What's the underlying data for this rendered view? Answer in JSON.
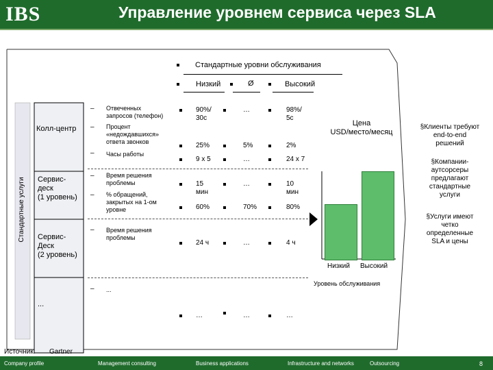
{
  "header": {
    "logo": "IBS",
    "title": "Управление уровнем сервиса через SLA"
  },
  "table": {
    "header_main": "Стандартные уровни обслуживания",
    "header_low": "Низкий",
    "header_avg": "Ø",
    "header_high": "Высокий",
    "side_label": "Стандартные услуги",
    "groups": [
      {
        "name": "Колл-центр"
      },
      {
        "name": "Сервис-\nдеск\n(1 уровень)"
      },
      {
        "name": "Сервис-\nДеск\n(2 уровень)"
      },
      {
        "name": "..."
      }
    ],
    "dash": "–",
    "metrics": {
      "m1": "Отвеченных\nзапросов (телефон)",
      "m2": "Процент\n«недождавшихся»\nответа звонков",
      "m3": "Часы работы",
      "m4": "Время решения\nпроблемы",
      "m5": "% обращений,\nзакрытых на 1-ом\nуровне",
      "m6": "Время решения\nпроблемы",
      "m7": "..."
    },
    "values": {
      "r1": [
        "90%/\n30с",
        "…",
        "98%/\n5с"
      ],
      "r2": [
        "25%",
        "5%",
        "2%"
      ],
      "r3": [
        "9 x 5",
        "…",
        "24 x 7"
      ],
      "r4": [
        "15\nмин",
        "…",
        "10\nмин"
      ],
      "r5": [
        "60%",
        "70%",
        "80%"
      ],
      "r6": [
        "24 ч",
        "…",
        "4 ч"
      ],
      "r7": [
        "…",
        "…",
        "…"
      ]
    }
  },
  "chart": {
    "title": "Цена\nUSD/место/месяц",
    "x_low": "Низкий",
    "x_high": "Высокий",
    "xlabel": "Уровень обслуживания",
    "bars": [
      {
        "category": "Низкий",
        "relative_height": 0.5
      },
      {
        "category": "Высокий",
        "relative_height": 0.8
      }
    ]
  },
  "notes": [
    "§Клиенты требуют\nend-to-end\nрешений",
    "§Компании-\nаутсорсеры\nпредлагают\nстандартные\nуслуги",
    "§Услуги имеют\nчетко\nопределенные\nSLA и цены"
  ],
  "source": {
    "label": "Источник:",
    "value": "Gartner"
  },
  "footer": {
    "items": [
      "Company profile",
      "Management consulting",
      "Business applications",
      "Infrastructure and networks",
      "Outsourcing"
    ],
    "page": "8"
  }
}
